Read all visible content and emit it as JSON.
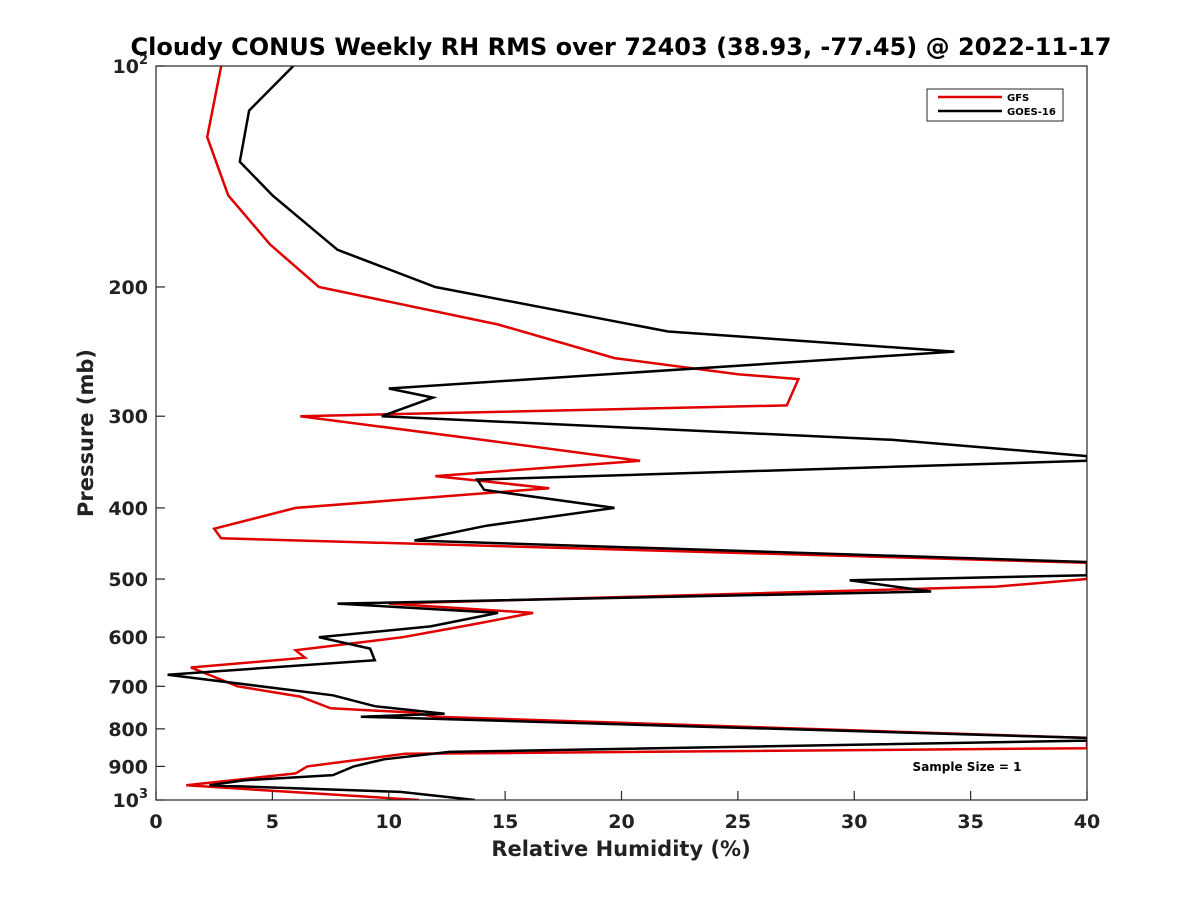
{
  "chart_data": {
    "type": "line",
    "title": "Cloudy CONUS Weekly RH RMS over 72403 (38.93, -77.45) @ 2022-11-17",
    "xlabel": "Relative Humidity (%)",
    "ylabel": "Pressure (mb)",
    "xlim": [
      0,
      40
    ],
    "ylim": [
      100,
      1000
    ],
    "y_scale": "log",
    "y_reversed": true,
    "x_ticks": [
      0,
      5,
      10,
      15,
      20,
      25,
      30,
      35,
      40
    ],
    "y_ticks": [
      {
        "value": 100,
        "label": "10",
        "exp": "2"
      },
      {
        "value": 200,
        "label": "200"
      },
      {
        "value": 300,
        "label": "300"
      },
      {
        "value": 400,
        "label": "400"
      },
      {
        "value": 500,
        "label": "500"
      },
      {
        "value": 600,
        "label": "600"
      },
      {
        "value": 700,
        "label": "700"
      },
      {
        "value": 800,
        "label": "800"
      },
      {
        "value": 900,
        "label": "900"
      },
      {
        "value": 1000,
        "label": "10",
        "exp": "3"
      }
    ],
    "grid": false,
    "legend_position": "top-right",
    "annotation": "Sample Size = 1",
    "series": [
      {
        "name": "GFS",
        "color": "#e00000",
        "points": [
          [
            2.8,
            100
          ],
          [
            2.2,
            125
          ],
          [
            3.1,
            150
          ],
          [
            4.9,
            175
          ],
          [
            7.0,
            200
          ],
          [
            14.7,
            225
          ],
          [
            19.7,
            250
          ],
          [
            25.0,
            263
          ],
          [
            27.6,
            267
          ],
          [
            27.1,
            290
          ],
          [
            6.2,
            300
          ],
          [
            14.0,
            323
          ],
          [
            20.8,
            345
          ],
          [
            12.0,
            362
          ],
          [
            16.9,
            376
          ],
          [
            6.0,
            400
          ],
          [
            2.5,
            427
          ],
          [
            2.8,
            440
          ],
          [
            40.0,
            475
          ],
          [
            40.0,
            500
          ],
          [
            36.1,
            512
          ],
          [
            10.0,
            540
          ],
          [
            16.2,
            556
          ],
          [
            13.8,
            575
          ],
          [
            10.6,
            600
          ],
          [
            6.0,
            625
          ],
          [
            6.4,
            640
          ],
          [
            1.5,
            660
          ],
          [
            3.5,
            700
          ],
          [
            6.2,
            723
          ],
          [
            7.5,
            750
          ],
          [
            11.0,
            760
          ],
          [
            12.0,
            770
          ],
          [
            40.0,
            823
          ],
          [
            40.0,
            850
          ],
          [
            10.7,
            865
          ],
          [
            6.5,
            900
          ],
          [
            6.0,
            920
          ],
          [
            1.3,
            955
          ],
          [
            11.3,
            1000
          ]
        ]
      },
      {
        "name": "GOES-16",
        "color": "#000000",
        "points": [
          [
            5.9,
            100
          ],
          [
            4.0,
            115
          ],
          [
            3.6,
            135
          ],
          [
            5.0,
            150
          ],
          [
            7.8,
            178
          ],
          [
            12.0,
            200
          ],
          [
            22.0,
            230
          ],
          [
            34.3,
            245
          ],
          [
            10.0,
            275
          ],
          [
            11.9,
            283
          ],
          [
            9.7,
            300
          ],
          [
            31.6,
            323
          ],
          [
            40.0,
            340
          ],
          [
            40.0,
            345
          ],
          [
            13.8,
            366
          ],
          [
            14.1,
            378
          ],
          [
            19.7,
            400
          ],
          [
            14.2,
            423
          ],
          [
            11.1,
            443
          ],
          [
            40.0,
            474
          ],
          [
            40.0,
            494
          ],
          [
            29.8,
            502
          ],
          [
            33.3,
            520
          ],
          [
            7.8,
            540
          ],
          [
            14.7,
            556
          ],
          [
            11.8,
            580
          ],
          [
            7.0,
            600
          ],
          [
            9.2,
            622
          ],
          [
            9.4,
            645
          ],
          [
            0.5,
            675
          ],
          [
            5.3,
            705
          ],
          [
            7.6,
            720
          ],
          [
            9.4,
            745
          ],
          [
            12.4,
            763
          ],
          [
            8.8,
            770
          ],
          [
            40.0,
            823
          ],
          [
            40.0,
            830
          ],
          [
            12.6,
            860
          ],
          [
            9.8,
            880
          ],
          [
            8.5,
            900
          ],
          [
            7.6,
            925
          ],
          [
            3.8,
            940
          ],
          [
            2.3,
            955
          ],
          [
            10.5,
            975
          ],
          [
            13.7,
            1000
          ]
        ]
      }
    ]
  }
}
